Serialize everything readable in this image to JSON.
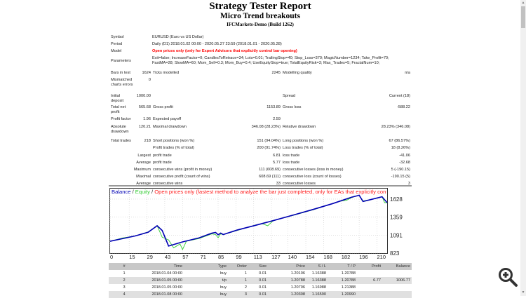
{
  "header": {
    "title": "Strategy Tester Report",
    "subtitle": "Micro Trend breakouts",
    "server": "IFCMarkets-Demo (Build 1262)"
  },
  "info": {
    "symbol_label": "Symbol",
    "symbol": "EURUSD (Euro vs US Dollar)",
    "period_label": "Period",
    "period": "Daily (D1) 2018.01.02 00:00 - 2020.05.27 23:59 (2018.01.01 - 2020.05.28)",
    "model_label": "Model",
    "model": "Open prices only (only for Expert Advisors that explicitly control bar opening)",
    "params_label": "Parameters",
    "params_line1": "Exit=false; IncreaseFactor=0; CandlesToRetrace=34; Lots=0.01; TrailingStop=40; Stop_Loss=370; MagicNumber=1234; Take_Profit=70;",
    "params_line2": "FastMA=28; SlowMA=60; Mom_Sell=0.3; Mom_Buy=0.4; UseEquityStop=true; TotalEquityRisk=3; Max_Trades=5; FractalNum=10;"
  },
  "stats": [
    {
      "top": 101,
      "cells": [
        [
          "Bars in test",
          ""
        ],
        [
          "1624",
          "r1"
        ],
        [
          "Ticks modelled",
          "l2"
        ],
        [
          "2245",
          "r2"
        ],
        [
          "Modelling quality",
          "l3"
        ],
        [
          "n/a",
          "r3"
        ]
      ]
    },
    {
      "top": 111,
      "cells": [
        [
          "Mismatched\ncharts errors",
          ""
        ],
        [
          "0",
          "r1"
        ]
      ]
    },
    {
      "top": 134,
      "cells": [
        [
          "Initial\ndeposit",
          ""
        ],
        [
          "1000.00",
          "r1"
        ],
        [
          "Spread",
          "l3"
        ],
        [
          "Current (18)",
          "r3"
        ]
      ]
    },
    {
      "top": 150,
      "cells": [
        [
          "Total net\nprofit",
          ""
        ],
        [
          "565.68",
          "r1"
        ],
        [
          "Gross profit",
          "l2"
        ],
        [
          "1153.89",
          "r2"
        ],
        [
          "Gross loss",
          "l3"
        ],
        [
          "-588.22",
          "r3"
        ]
      ]
    },
    {
      "top": 167,
      "cells": [
        [
          "Profit factor",
          ""
        ],
        [
          "1.96",
          "r1"
        ],
        [
          "Expected payoff",
          "l2"
        ],
        [
          "2.59",
          "r2"
        ]
      ]
    },
    {
      "top": 178,
      "cells": [
        [
          "Absolute\ndrawdown",
          ""
        ],
        [
          "120.21",
          "r1"
        ],
        [
          "Maximal drawdown",
          "l2"
        ],
        [
          "346.08 (28.23%)",
          "r2"
        ],
        [
          "Relative drawdown",
          "l3"
        ],
        [
          "28.23% (346.08)",
          "r3"
        ]
      ]
    },
    {
      "top": 198,
      "cells": [
        [
          "Total trades",
          ""
        ],
        [
          "218",
          "r1"
        ],
        [
          "Short positions (won %)",
          "l2"
        ],
        [
          "151 (94.04%)",
          "r2"
        ],
        [
          "Long positions (won %)",
          "l3"
        ],
        [
          "67 (86.57%)",
          "r3"
        ]
      ]
    },
    {
      "top": 208,
      "cells": [
        [
          "Profit trades (% of total)",
          "l2"
        ],
        [
          "200 (91.74%)",
          "r2"
        ],
        [
          "Loss trades (% of total)",
          "l3"
        ],
        [
          "18 (8.26%)",
          "r3"
        ]
      ]
    },
    {
      "top": 219,
      "cells": [
        [
          "Largest",
          "r1"
        ],
        [
          "profit trade",
          "l2"
        ],
        [
          "6.81",
          "r2"
        ],
        [
          "loss trade",
          "l3"
        ],
        [
          "-41.06",
          "r3"
        ]
      ]
    },
    {
      "top": 229,
      "cells": [
        [
          "Average",
          "r1"
        ],
        [
          "profit trade",
          "l2"
        ],
        [
          "5.77",
          "r2"
        ],
        [
          "loss trade",
          "l3"
        ],
        [
          "-32.68",
          "r3"
        ]
      ]
    },
    {
      "top": 239,
      "cells": [
        [
          "Maximum",
          "r1"
        ],
        [
          "consecutive wins (profit in money)",
          "l2"
        ],
        [
          "111 (608.69)",
          "r2"
        ],
        [
          "consecutive losses (loss in money)",
          "l3"
        ],
        [
          "5 (-190.15)",
          "r3"
        ]
      ]
    },
    {
      "top": 249,
      "cells": [
        [
          "Maximal",
          "r1"
        ],
        [
          "consecutive profit (count of wins)",
          "l2"
        ],
        [
          "608.69 (111)",
          "r2"
        ],
        [
          "consecutive loss (count of losses)",
          "l3"
        ],
        [
          "-190.15 (5)",
          "r3"
        ]
      ]
    },
    {
      "top": 259,
      "cells": [
        [
          "Average",
          "r1"
        ],
        [
          "consecutive wins",
          "l2"
        ],
        [
          "33",
          "r2"
        ],
        [
          "consecutive losses",
          "l3"
        ],
        [
          "3",
          "r3"
        ]
      ]
    }
  ],
  "chart_data": {
    "type": "line",
    "legend": {
      "balance": "Balance",
      "equity": "Equity",
      "model": "Open prices only (fastest method to analyze the bar just completed, only for EAs that explicitly control b"
    },
    "colors": {
      "balance": "#0000b4",
      "equity": "#33cc33",
      "model": "#ff2020"
    },
    "xticks": [
      0,
      15,
      29,
      43,
      57,
      71,
      85,
      99,
      113,
      127,
      140,
      154,
      168,
      182,
      196,
      210
    ],
    "yticks": [
      823,
      1091,
      1359,
      1628
    ],
    "xlim": [
      0,
      218
    ],
    "ylim": [
      823,
      1690
    ],
    "grid": true,
    "series": [
      {
        "name": "Balance",
        "x": [
          0,
          10,
          20,
          30,
          37,
          41,
          46,
          57,
          70,
          80,
          83,
          85,
          87,
          89,
          100,
          115,
          130,
          145,
          160,
          175,
          190,
          196,
          199,
          205,
          214,
          218
        ],
        "y": [
          1000,
          1040,
          1080,
          1135,
          1231,
          1160,
          929,
          990,
          1050,
          1120,
          1131,
          1096,
          1121,
          1100,
          1167,
          1240,
          1316,
          1395,
          1475,
          1560,
          1656,
          1685,
          1592,
          1620,
          1663,
          1575
        ]
      },
      {
        "name": "Equity",
        "x": [
          0,
          10,
          20,
          30,
          37,
          41,
          46,
          50,
          55,
          57,
          60,
          70,
          80,
          83,
          85,
          87,
          89,
          100,
          115,
          120,
          124,
          128,
          130,
          145,
          160,
          175,
          182,
          186,
          190,
          196,
          199,
          205,
          214,
          216,
          218
        ],
        "y": [
          1000,
          1050,
          1080,
          1140,
          1231,
          1060,
          1020,
          901,
          960,
          876,
          1000,
          1040,
          1110,
          1100,
          1053,
          1110,
          1100,
          1160,
          1245,
          1260,
          1231,
          1300,
          1316,
          1390,
          1470,
          1560,
          1600,
          1610,
          1650,
          1685,
          1600,
          1620,
          1665,
          1575,
          1575
        ]
      }
    ]
  },
  "trades": {
    "headers": [
      "#",
      "Time",
      "Type",
      "Order",
      "Size",
      "Price",
      "S / L",
      "T / P",
      "Profit",
      "Balance"
    ],
    "rows": [
      [
        "1",
        "2018.01.04 00:00",
        "buy",
        "1",
        "0.01",
        "1.20106",
        "1.16388",
        "1.20788",
        "",
        ""
      ],
      [
        "2",
        "2018.01.05 00:00",
        "t/p",
        "1",
        "0.01",
        "1.20788",
        "1.16388",
        "1.20788",
        "6.77",
        "1006.77"
      ],
      [
        "3",
        "2018.01.05 00:00",
        "buy",
        "2",
        "0.01",
        "1.20706",
        "1.16988",
        "1.21388",
        "",
        ""
      ],
      [
        "4",
        "2018.01.08 00:00",
        "buy",
        "3",
        "0.01",
        "1.20308",
        "1.16590",
        "1.20990",
        "",
        ""
      ]
    ]
  }
}
